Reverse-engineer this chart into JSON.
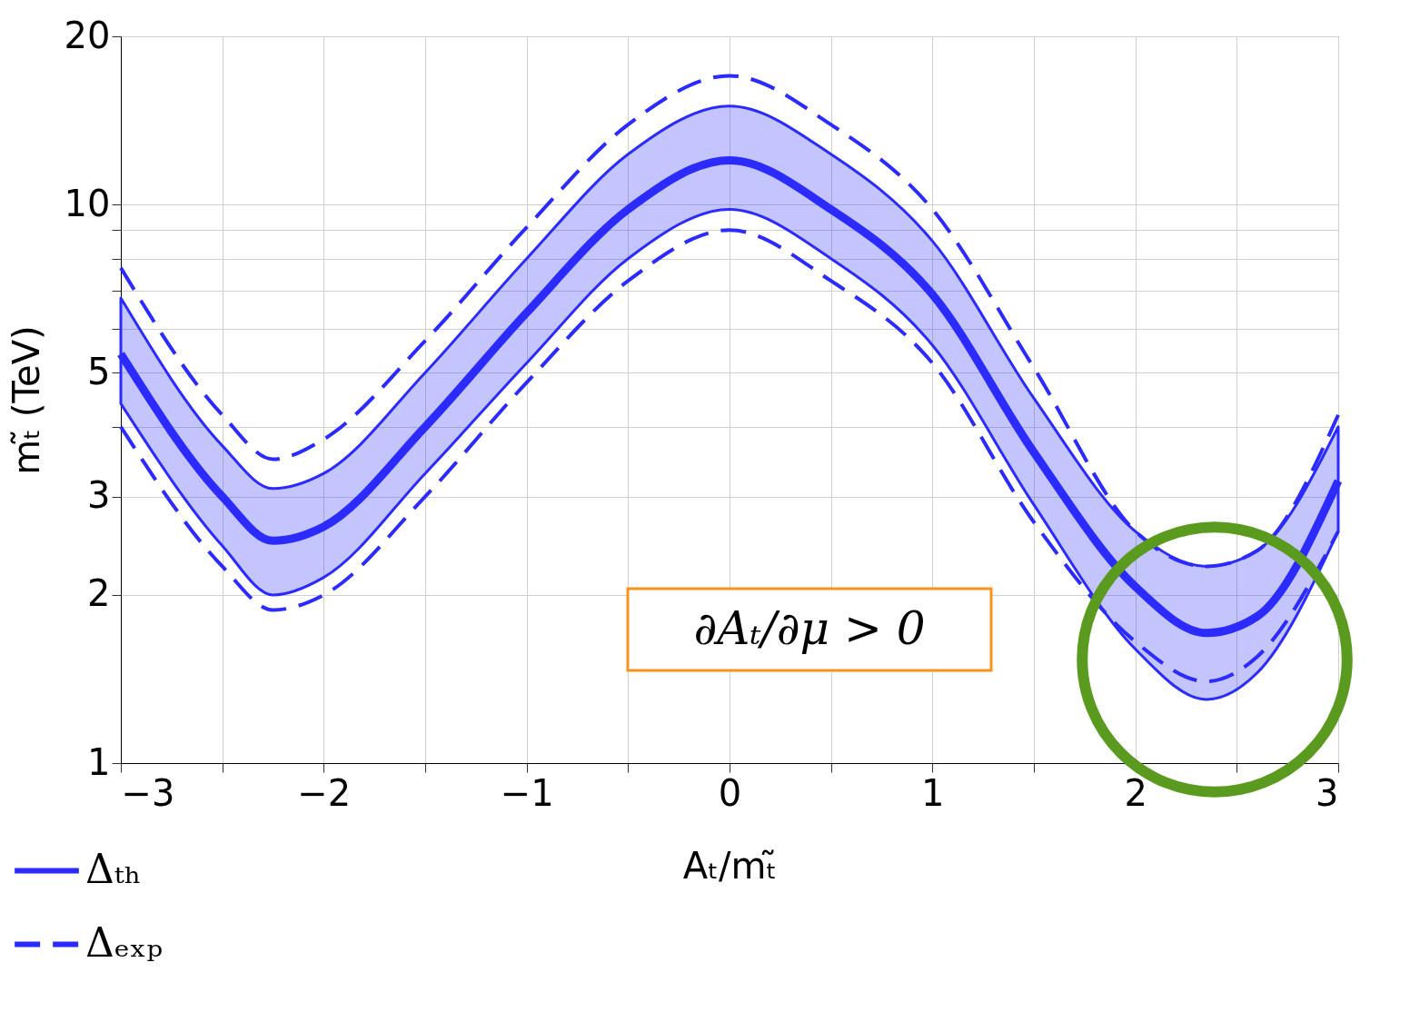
{
  "chart_data": {
    "type": "line",
    "xlabel": "Aₜ/mₜ̃",
    "ylabel": "mₜ̃ (TeV)",
    "log": "y",
    "grid": true,
    "legend": "bottom left",
    "xlim": [
      -3,
      3
    ],
    "ylim": [
      1,
      20
    ],
    "xticks": [
      {
        "value": -3,
        "label": "−3"
      },
      {
        "value": -2.5,
        "label": null
      },
      {
        "value": -2,
        "label": "−2"
      },
      {
        "value": -1.5,
        "label": null
      },
      {
        "value": -1,
        "label": "−1"
      },
      {
        "value": -0.5,
        "label": null
      },
      0,
      {
        "value": 0.5,
        "label": null
      },
      1,
      {
        "value": 1.5,
        "label": null
      },
      2,
      {
        "value": 2.5,
        "label": null
      },
      3
    ],
    "yticks": [
      1,
      2,
      3,
      {
        "value": 4,
        "label": null
      },
      5,
      {
        "value": 6,
        "label": null
      },
      {
        "value": 7,
        "label": null
      },
      {
        "value": 8,
        "label": null
      },
      {
        "value": 9,
        "label": null
      },
      10,
      20
    ],
    "x": [
      -3,
      -2.5,
      -2.25,
      -2,
      -1.5,
      -1,
      -0.5,
      0,
      0.5,
      1,
      1.5,
      2,
      2.35,
      2.6,
      3
    ],
    "series": [
      {
        "name": "Δₜₕ",
        "color": "#2b2bff",
        "line_style": "solid",
        "values": [
          5.4,
          3.0,
          2.5,
          2.65,
          4.0,
          6.4,
          9.8,
          12.0,
          9.8,
          6.9,
          3.6,
          2.07,
          1.71,
          1.83,
          3.2
        ],
        "lower": [
          4.4,
          2.45,
          2.0,
          2.15,
          3.3,
          5.2,
          8.0,
          9.8,
          8.0,
          5.6,
          2.9,
          1.6,
          1.3,
          1.45,
          2.6
        ],
        "upper": [
          6.8,
          3.7,
          3.1,
          3.3,
          5.0,
          8.0,
          12.3,
          15.0,
          12.3,
          8.6,
          4.5,
          2.6,
          2.25,
          2.4,
          4.0
        ]
      },
      {
        "name": "Δₑₓₚ",
        "color": "#2b2bff",
        "line_style": "dashed",
        "values": [
          7.7,
          4.2,
          3.5,
          3.8,
          5.7,
          9.1,
          13.9,
          17.0,
          13.9,
          9.8,
          5.1,
          2.6,
          2.25,
          2.4,
          4.2
        ]
      },
      {
        "color": "#2b2bff",
        "line_style": "dashed",
        "values": [
          4.0,
          2.25,
          1.88,
          2.0,
          3.0,
          4.8,
          7.3,
          9.0,
          7.3,
          5.2,
          2.7,
          1.65,
          1.4,
          1.55,
          2.6
        ]
      }
    ],
    "annotations": [
      "∂Aₜ/∂μ > 0"
    ]
  }
}
